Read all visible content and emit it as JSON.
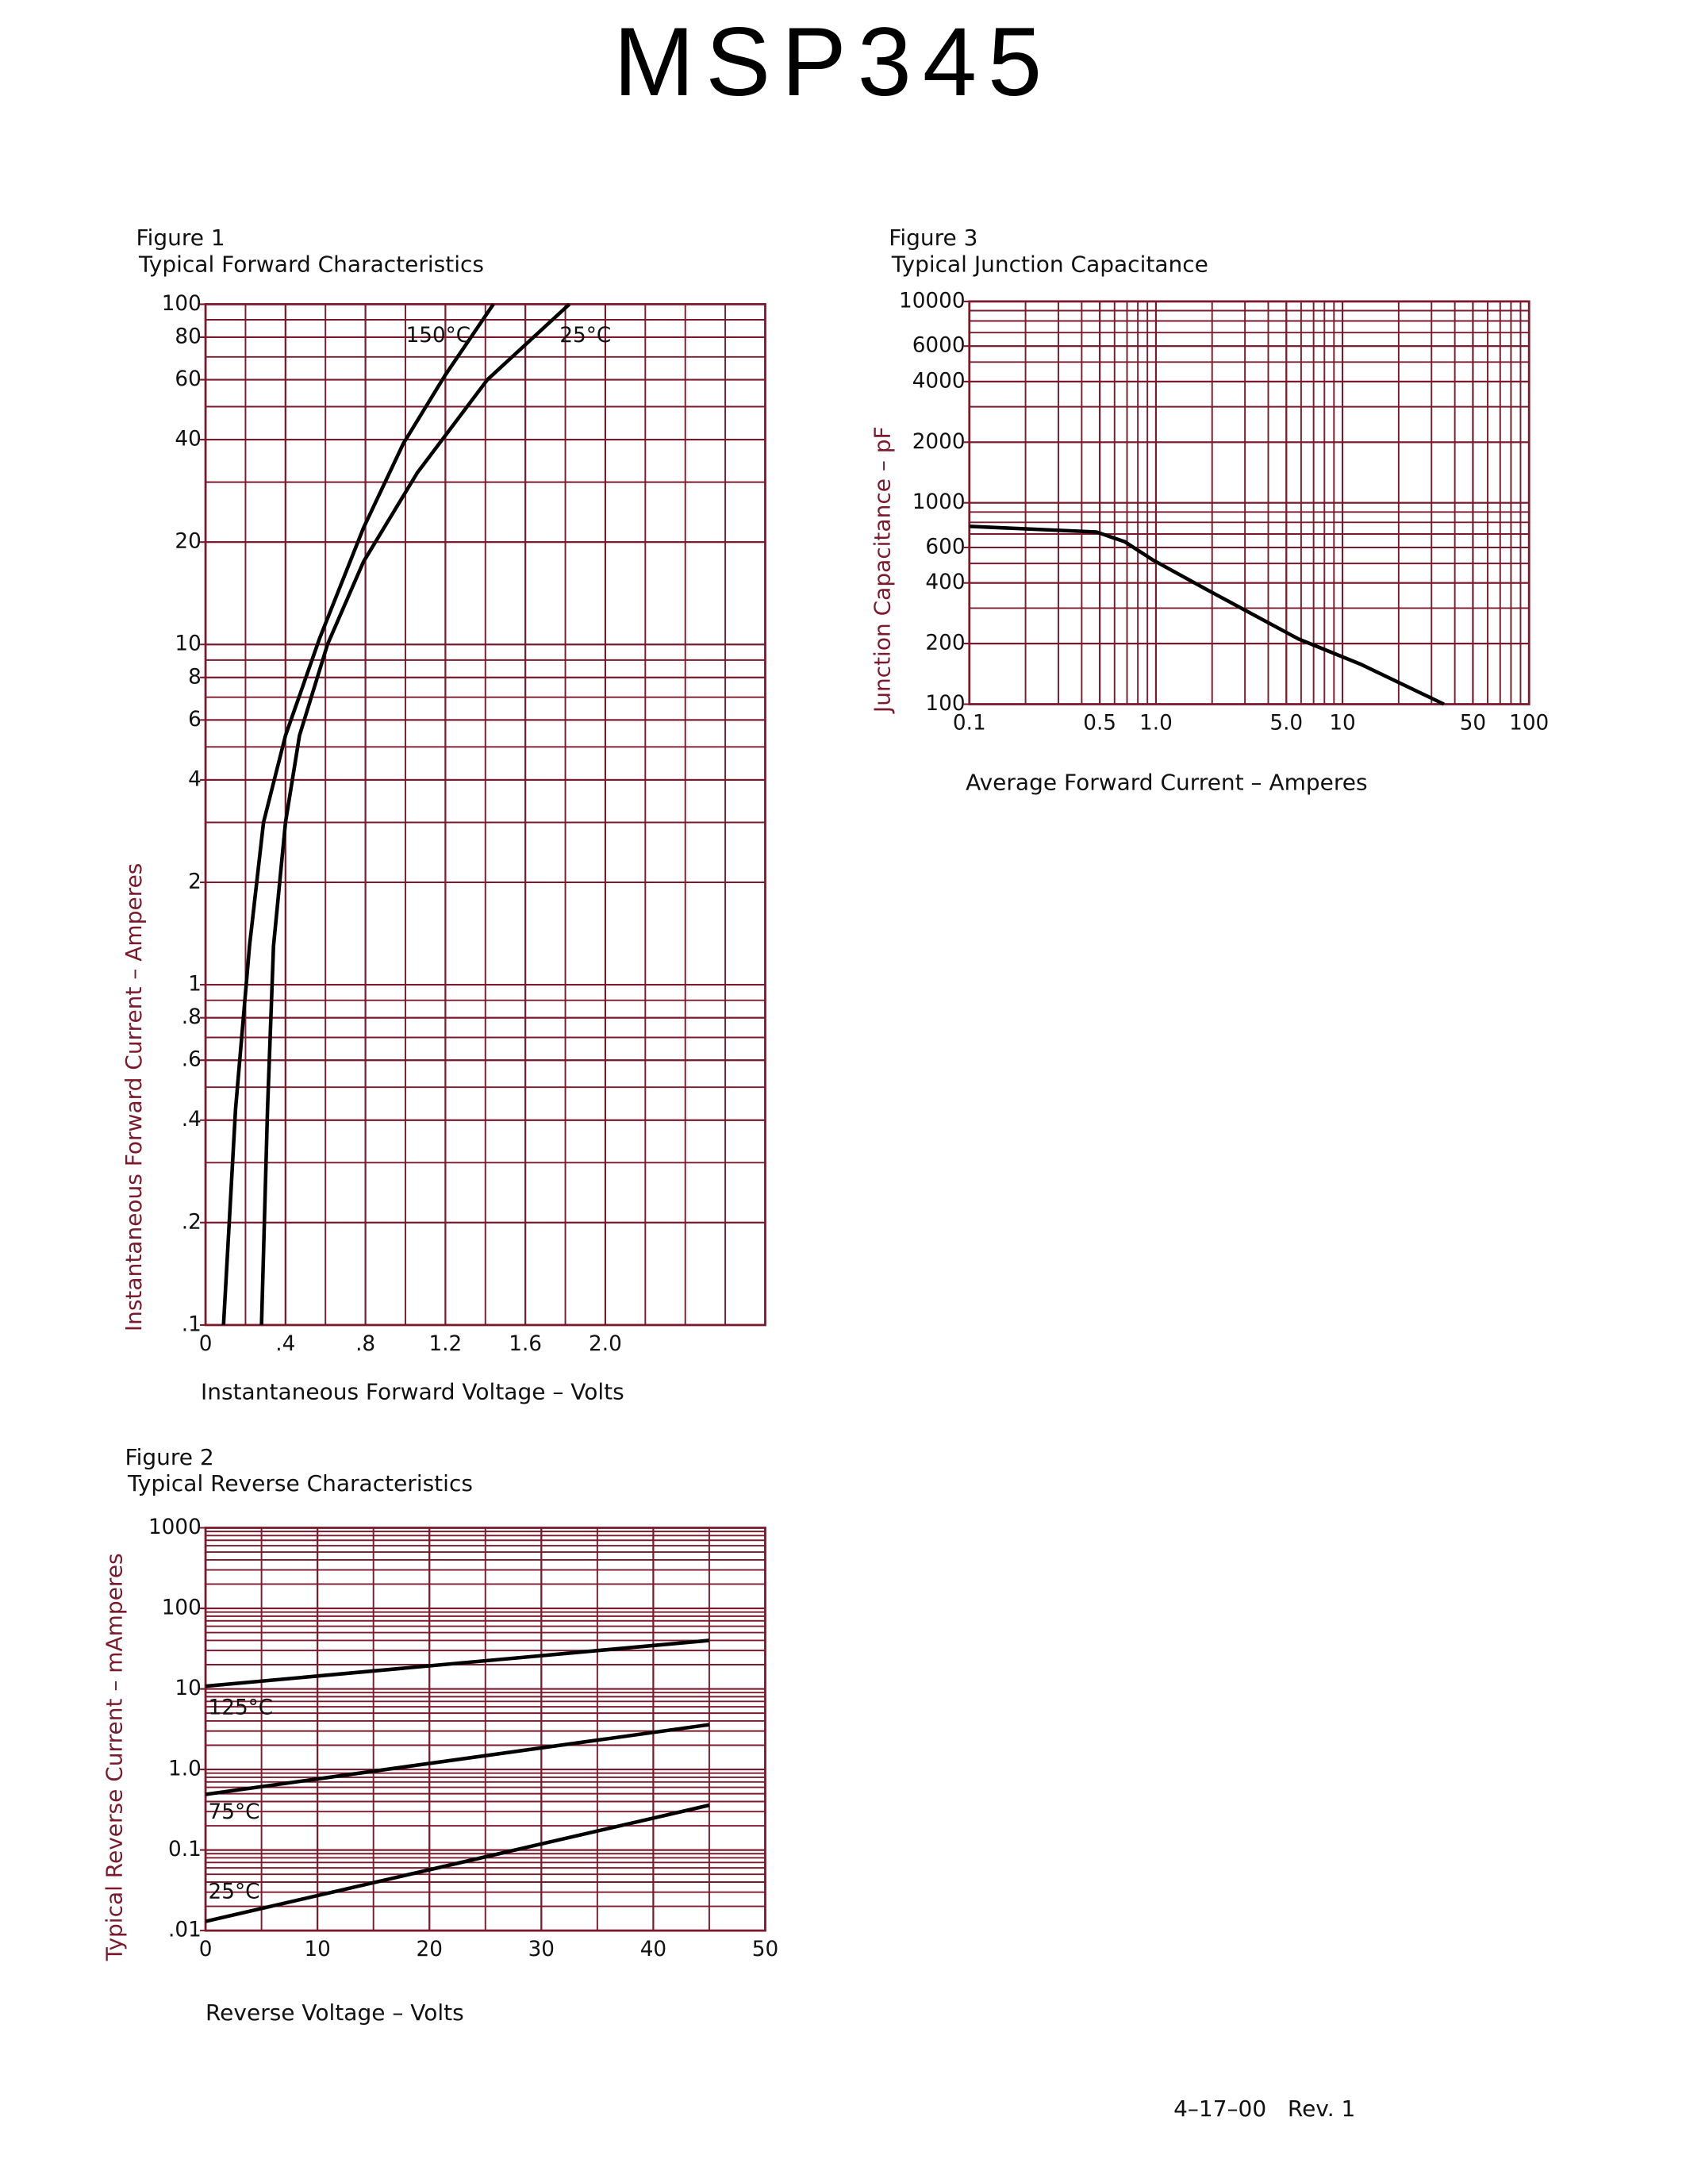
{
  "title": "MSP345",
  "footer": "4–17–00   Rev. 1",
  "chart_data": [
    {
      "type": "line",
      "figure": "Figure 1",
      "title": "Typical Forward Characteristics",
      "x_label": "Instantaneous Forward Voltage – Volts",
      "y_label": "Instantaneous Forward Current – Amperes",
      "xlim": [
        0,
        2.8
      ],
      "xticks": [
        0,
        {
          "value": 0.4,
          "label": ".4"
        },
        {
          "value": 0.8,
          "label": ".8"
        },
        1.2,
        1.6,
        {
          "value": 2,
          "label": "2.0"
        }
      ],
      "xminor": 0.2,
      "ylim": [
        0.1,
        100
      ],
      "ylog": true,
      "yticks": [
        {
          "value": 0.1,
          "label": ".1"
        },
        {
          "value": 0.2,
          "label": ".2"
        },
        {
          "value": 0.4,
          "label": ".4"
        },
        {
          "value": 0.6,
          "label": ".6"
        },
        {
          "value": 0.8,
          "label": ".8"
        },
        1,
        2,
        4,
        6,
        8,
        10,
        20,
        40,
        60,
        80,
        100
      ],
      "grid": true,
      "series": [
        {
          "name": "150°C",
          "color": "#000000",
          "x": [
            0.09,
            0.15,
            0.22,
            0.29,
            0.4,
            0.57,
            0.79,
            0.99,
            1.2,
            1.44
          ],
          "values": [
            0.1,
            0.43,
            1.3,
            3,
            5.4,
            10.4,
            22,
            39,
            62,
            100
          ]
        },
        {
          "name": "25°C",
          "color": "#000000",
          "x": [
            0.28,
            0.31,
            0.34,
            0.4,
            0.47,
            0.61,
            0.79,
            1.06,
            1.41,
            1.82
          ],
          "values": [
            0.1,
            0.43,
            1.3,
            3,
            5.4,
            10,
            17.5,
            32,
            60,
            100
          ]
        }
      ]
    },
    {
      "type": "line",
      "figure": "Figure 2",
      "title": "Typical Reverse Characteristics",
      "x_label": "Reverse Voltage – Volts",
      "y_label": "Typical Reverse Current – mAmperes",
      "xlim": [
        0,
        50
      ],
      "xticks": [
        0,
        10,
        20,
        30,
        40,
        50
      ],
      "xminor": 5,
      "ylim": [
        0.01,
        1000
      ],
      "ylog": true,
      "yticks": [
        {
          "value": 0.01,
          "label": ".01"
        },
        0.1,
        {
          "value": 1,
          "label": "1.0"
        },
        10,
        100,
        1000
      ],
      "grid": true,
      "series": [
        {
          "name": "125°C",
          "color": "#000000",
          "x": [
            0,
            45
          ],
          "values": [
            10.8,
            40
          ]
        },
        {
          "name": "75°C",
          "color": "#000000",
          "x": [
            0,
            45
          ],
          "values": [
            0.49,
            3.6
          ]
        },
        {
          "name": "25°C",
          "color": "#000000",
          "x": [
            0,
            45
          ],
          "values": [
            0.013,
            0.36
          ]
        }
      ]
    },
    {
      "type": "line",
      "figure": "Figure 3",
      "title": "Typical Junction Capacitance",
      "x_label": "Average Forward Current – Amperes",
      "y_label": "Junction Capacitance – pF",
      "xlim": [
        0.1,
        100
      ],
      "xlog": true,
      "xticks": [
        0.1,
        0.5,
        {
          "value": 1,
          "label": "1.0"
        },
        {
          "value": 5,
          "label": "5.0"
        },
        10,
        50,
        100
      ],
      "ylim": [
        100,
        10000
      ],
      "ylog": true,
      "yticks": [
        100,
        200,
        400,
        600,
        1000,
        2000,
        4000,
        6000,
        10000
      ],
      "grid": true,
      "series": [
        {
          "name": null,
          "color": "#000000",
          "x": [
            0.1,
            0.48,
            0.68,
            0.96,
            1.9,
            5.8,
            12.5,
            35
          ],
          "values": [
            764,
            716,
            641,
            521,
            368,
            211,
            158,
            100
          ]
        }
      ]
    }
  ]
}
